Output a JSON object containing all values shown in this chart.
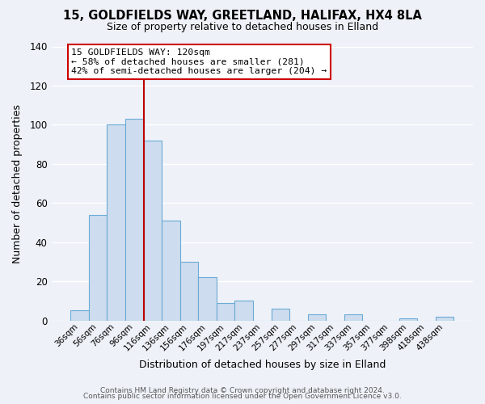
{
  "title1": "15, GOLDFIELDS WAY, GREETLAND, HALIFAX, HX4 8LA",
  "title2": "Size of property relative to detached houses in Elland",
  "xlabel": "Distribution of detached houses by size in Elland",
  "ylabel": "Number of detached properties",
  "bar_labels": [
    "36sqm",
    "56sqm",
    "76sqm",
    "96sqm",
    "116sqm",
    "136sqm",
    "156sqm",
    "176sqm",
    "197sqm",
    "217sqm",
    "237sqm",
    "257sqm",
    "277sqm",
    "297sqm",
    "317sqm",
    "337sqm",
    "357sqm",
    "377sqm",
    "398sqm",
    "418sqm",
    "438sqm"
  ],
  "bar_values": [
    5,
    54,
    100,
    103,
    92,
    51,
    30,
    22,
    9,
    10,
    0,
    6,
    0,
    3,
    0,
    3,
    0,
    0,
    1,
    0,
    2
  ],
  "bar_color": "#cddcee",
  "bar_edgecolor": "#6aaad4",
  "ylim": [
    0,
    140
  ],
  "yticks": [
    0,
    20,
    40,
    60,
    80,
    100,
    120,
    140
  ],
  "vline_x": 4.0,
  "vline_color": "#bb0000",
  "annotation_title": "15 GOLDFIELDS WAY: 120sqm",
  "annotation_line1": "← 58% of detached houses are smaller (281)",
  "annotation_line2": "42% of semi-detached houses are larger (204) →",
  "annotation_box_color": "#cc0000",
  "footer1": "Contains HM Land Registry data © Crown copyright and database right 2024.",
  "footer2": "Contains public sector information licensed under the Open Government Licence v3.0.",
  "background_color": "#eef2f8",
  "plot_bg_color": "#eef2f8",
  "grid_color": "#ffffff"
}
